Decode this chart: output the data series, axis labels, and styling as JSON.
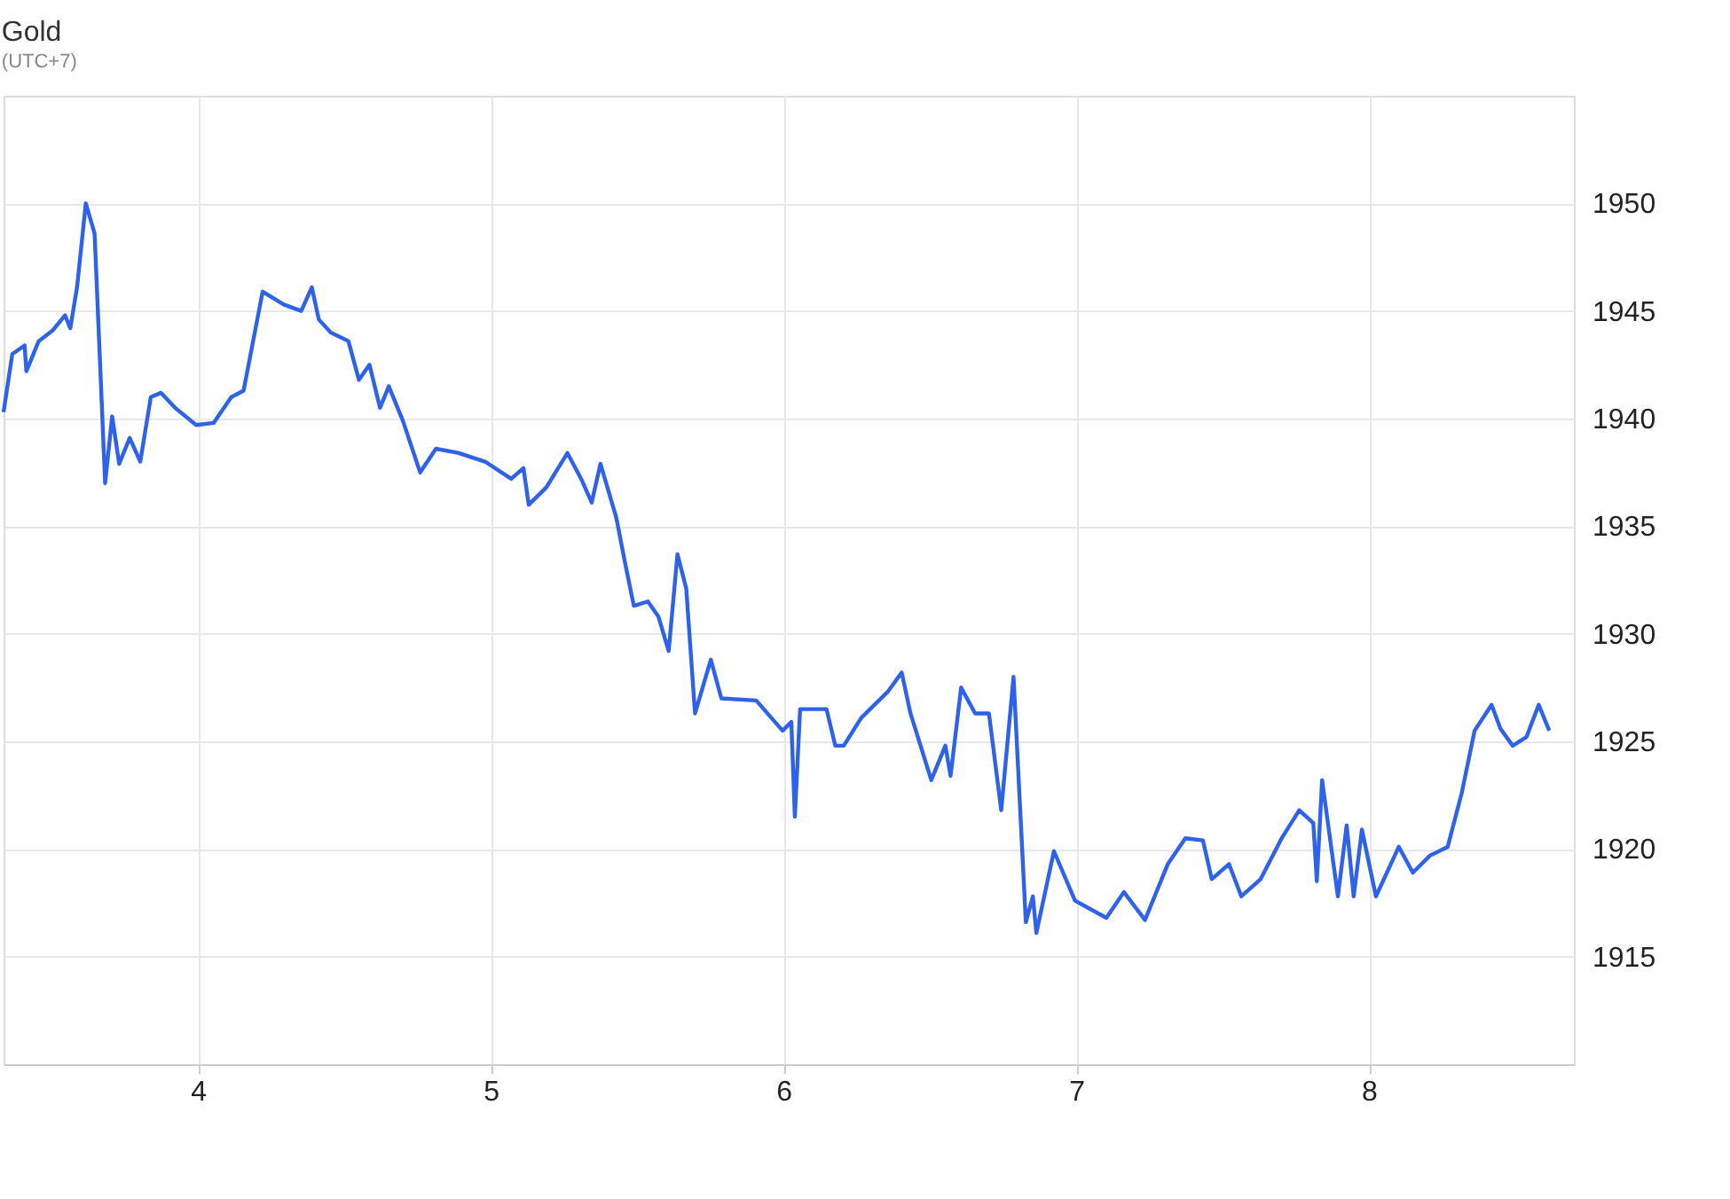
{
  "chart_data": {
    "type": "line",
    "title": "Gold",
    "subtitle": "(UTC+7)",
    "x": [
      3.336,
      3.366,
      3.408,
      3.414,
      3.456,
      3.504,
      3.546,
      3.564,
      3.587,
      3.617,
      3.647,
      3.683,
      3.707,
      3.731,
      3.767,
      3.803,
      3.839,
      3.874,
      3.922,
      3.994,
      4.054,
      4.114,
      4.156,
      4.221,
      4.293,
      4.353,
      4.389,
      4.413,
      4.454,
      4.514,
      4.55,
      4.586,
      4.622,
      4.652,
      4.7,
      4.759,
      4.813,
      4.891,
      4.981,
      5.07,
      5.112,
      5.13,
      5.19,
      5.262,
      5.309,
      5.345,
      5.375,
      5.429,
      5.459,
      5.489,
      5.537,
      5.573,
      5.608,
      5.638,
      5.668,
      5.698,
      5.752,
      5.788,
      5.907,
      5.997,
      6.027,
      6.039,
      6.057,
      6.147,
      6.177,
      6.206,
      6.266,
      6.356,
      6.404,
      6.434,
      6.505,
      6.553,
      6.571,
      6.607,
      6.655,
      6.702,
      6.744,
      6.786,
      6.828,
      6.852,
      6.864,
      6.924,
      6.996,
      7.103,
      7.163,
      7.235,
      7.313,
      7.373,
      7.433,
      7.463,
      7.522,
      7.564,
      7.63,
      7.702,
      7.762,
      7.81,
      7.822,
      7.84,
      7.894,
      7.924,
      7.948,
      7.976,
      8.024,
      8.102,
      8.15,
      8.209,
      8.269,
      8.317,
      8.361,
      8.419,
      8.449,
      8.491,
      8.538,
      8.58,
      8.616
    ],
    "series": [
      {
        "color": "#2f62eb",
        "values": [
          1940.3,
          1943.0,
          1943.4,
          1942.2,
          1943.6,
          1944.1,
          1944.8,
          1944.2,
          1946.1,
          1950.0,
          1948.6,
          1937.0,
          1940.1,
          1937.9,
          1939.1,
          1938.0,
          1941.0,
          1941.2,
          1940.5,
          1939.7,
          1939.8,
          1941.0,
          1941.3,
          1945.9,
          1945.3,
          1945.0,
          1946.1,
          1944.6,
          1944.0,
          1943.6,
          1941.8,
          1942.5,
          1940.5,
          1941.5,
          1939.9,
          1937.5,
          1938.6,
          1938.4,
          1938.0,
          1937.2,
          1937.7,
          1936.0,
          1936.8,
          1938.4,
          1937.2,
          1936.1,
          1937.9,
          1935.4,
          1933.3,
          1931.3,
          1931.5,
          1930.8,
          1929.2,
          1933.7,
          1932.1,
          1926.3,
          1928.8,
          1927.0,
          1926.9,
          1925.5,
          1925.9,
          1921.5,
          1926.5,
          1926.5,
          1924.8,
          1924.8,
          1926.1,
          1927.3,
          1928.2,
          1926.3,
          1923.2,
          1924.8,
          1923.4,
          1927.5,
          1926.3,
          1926.3,
          1921.8,
          1928.0,
          1916.6,
          1917.8,
          1916.1,
          1919.9,
          1917.6,
          1916.8,
          1918.0,
          1916.7,
          1919.3,
          1920.5,
          1920.4,
          1918.6,
          1919.3,
          1917.8,
          1918.6,
          1920.5,
          1921.8,
          1921.2,
          1918.5,
          1923.2,
          1917.8,
          1921.1,
          1917.8,
          1920.9,
          1917.8,
          1920.1,
          1918.9,
          1919.7,
          1920.1,
          1922.6,
          1925.5,
          1926.7,
          1925.6,
          1924.8,
          1925.2,
          1926.7,
          1925.5
        ]
      }
    ],
    "xlim": [
      3.336,
      8.7
    ],
    "xticks": [
      4,
      5,
      6,
      7,
      8
    ],
    "ylim": [
      1910,
      1955
    ],
    "yticks": [
      1915,
      1920,
      1925,
      1930,
      1935,
      1940,
      1945,
      1950
    ],
    "grid": true,
    "legend": false,
    "marker": "none",
    "line_style": "solid"
  }
}
